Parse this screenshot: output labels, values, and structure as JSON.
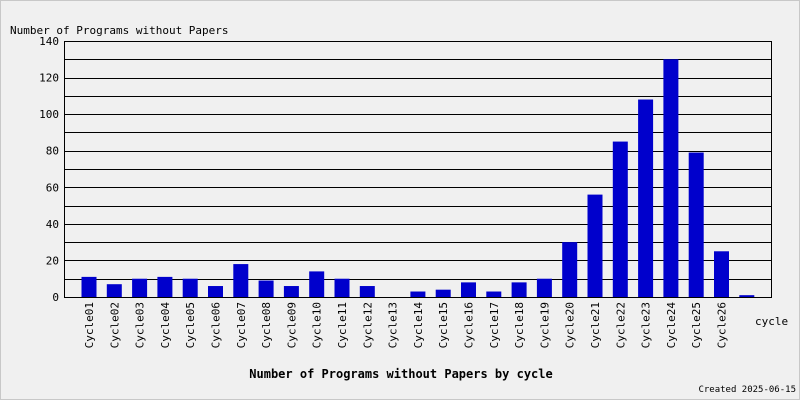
{
  "chart_data": {
    "type": "bar",
    "title": "Number of Programs without Papers by cycle",
    "ylabel": "Number of Programs without Papers",
    "xlabel": "cycle",
    "categories": [
      "Cycle01",
      "Cycle02",
      "Cycle03",
      "Cycle04",
      "Cycle05",
      "Cycle06",
      "Cycle07",
      "Cycle08",
      "Cycle09",
      "Cycle10",
      "Cycle11",
      "Cycle12",
      "Cycle13",
      "Cycle14",
      "Cycle15",
      "Cycle16",
      "Cycle17",
      "Cycle18",
      "Cycle19",
      "Cycle20",
      "Cycle21",
      "Cycle22",
      "Cycle23",
      "Cycle24",
      "Cycle25",
      "Cycle26",
      ""
    ],
    "values": [
      11,
      7,
      10,
      11,
      10,
      6,
      18,
      9,
      6,
      14,
      10,
      6,
      0,
      3,
      4,
      8,
      3,
      8,
      10,
      30,
      56,
      85,
      108,
      130,
      79,
      25,
      1
    ],
    "ylim": [
      0,
      140
    ],
    "yticks": [
      0,
      20,
      40,
      60,
      80,
      100,
      120,
      140
    ],
    "grid": true,
    "colors": {
      "bar": "#0000cc",
      "plot_bg": "#f0f0f0",
      "grid": "#000000",
      "text": "#000000"
    }
  },
  "footer": {
    "created": "Created 2025-06-15"
  }
}
